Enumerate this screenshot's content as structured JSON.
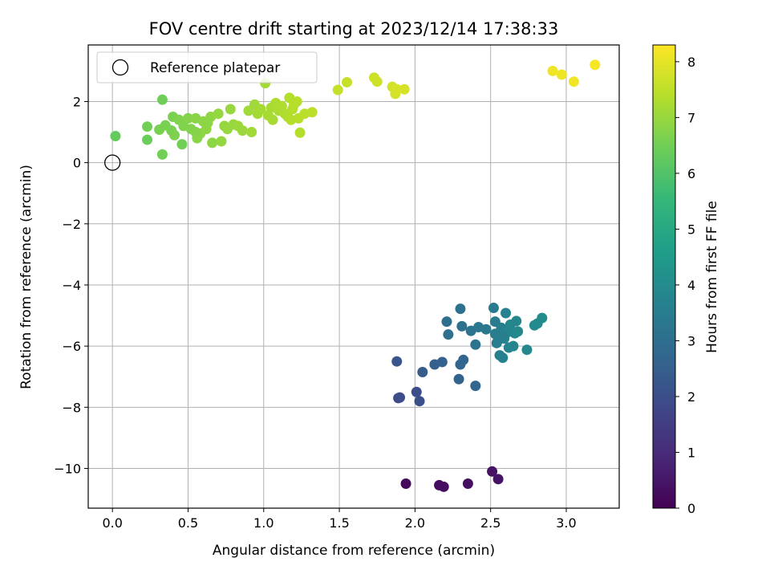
{
  "chart_data": {
    "type": "scatter",
    "title": "FOV centre drift starting at 2023/12/14 17:38:33",
    "xlabel": "Angular distance from reference (arcmin)",
    "ylabel": "Rotation from reference (arcmin)",
    "xlim": [
      -0.16,
      3.35
    ],
    "ylim": [
      -11.3,
      3.85
    ],
    "xticks": [
      0.0,
      0.5,
      1.0,
      1.5,
      2.0,
      2.5,
      3.0
    ],
    "xtick_labels": [
      "0.0",
      "0.5",
      "1.0",
      "1.5",
      "2.0",
      "2.5",
      "3.0"
    ],
    "yticks": [
      -10,
      -8,
      -6,
      -4,
      -2,
      0,
      2
    ],
    "ytick_labels": [
      "−10",
      "−8",
      "−6",
      "−4",
      "−2",
      "0",
      "2"
    ],
    "grid": true,
    "colormap": "viridis",
    "colorbar": {
      "label": "Hours from first FF file",
      "range": [
        0,
        8.3
      ],
      "ticks": [
        0,
        1,
        2,
        3,
        4,
        5,
        6,
        7,
        8
      ],
      "tick_labels": [
        "0",
        "1",
        "2",
        "3",
        "4",
        "5",
        "6",
        "7",
        "8"
      ]
    },
    "legend": {
      "placement": "top-left",
      "entries": [
        "Reference platepar"
      ]
    },
    "reference_point": {
      "x": 0.0,
      "y": 0.0,
      "label": "Reference platepar"
    },
    "points": [
      {
        "x": 1.94,
        "y": -10.5,
        "t": 0.2
      },
      {
        "x": 2.16,
        "y": -10.55,
        "t": 0.25
      },
      {
        "x": 2.19,
        "y": -10.6,
        "t": 0.3
      },
      {
        "x": 2.35,
        "y": -10.5,
        "t": 0.35
      },
      {
        "x": 2.51,
        "y": -10.1,
        "t": 0.4
      },
      {
        "x": 2.55,
        "y": -10.35,
        "t": 0.45
      },
      {
        "x": 1.89,
        "y": -7.7,
        "t": 1.9
      },
      {
        "x": 1.9,
        "y": -7.68,
        "t": 1.95
      },
      {
        "x": 2.01,
        "y": -7.5,
        "t": 2.0
      },
      {
        "x": 2.03,
        "y": -7.8,
        "t": 2.05
      },
      {
        "x": 1.88,
        "y": -6.5,
        "t": 2.2
      },
      {
        "x": 2.05,
        "y": -6.85,
        "t": 2.4
      },
      {
        "x": 2.13,
        "y": -6.6,
        "t": 2.5
      },
      {
        "x": 2.18,
        "y": -6.52,
        "t": 2.55
      },
      {
        "x": 2.29,
        "y": -7.08,
        "t": 2.6
      },
      {
        "x": 2.3,
        "y": -6.6,
        "t": 2.7
      },
      {
        "x": 2.32,
        "y": -6.45,
        "t": 2.75
      },
      {
        "x": 2.4,
        "y": -7.3,
        "t": 2.7
      },
      {
        "x": 2.21,
        "y": -5.2,
        "t": 3.0
      },
      {
        "x": 2.22,
        "y": -5.62,
        "t": 3.05
      },
      {
        "x": 2.3,
        "y": -4.78,
        "t": 3.1
      },
      {
        "x": 2.31,
        "y": -5.35,
        "t": 3.1
      },
      {
        "x": 2.37,
        "y": -5.5,
        "t": 3.2
      },
      {
        "x": 2.4,
        "y": -5.95,
        "t": 3.2
      },
      {
        "x": 2.42,
        "y": -5.38,
        "t": 3.3
      },
      {
        "x": 2.47,
        "y": -5.45,
        "t": 3.35
      },
      {
        "x": 2.52,
        "y": -4.75,
        "t": 3.4
      },
      {
        "x": 2.53,
        "y": -5.2,
        "t": 3.45
      },
      {
        "x": 2.53,
        "y": -5.6,
        "t": 3.5
      },
      {
        "x": 2.54,
        "y": -5.9,
        "t": 3.55
      },
      {
        "x": 2.56,
        "y": -6.3,
        "t": 3.6
      },
      {
        "x": 2.57,
        "y": -5.4,
        "t": 3.6
      },
      {
        "x": 2.58,
        "y": -6.38,
        "t": 3.65
      },
      {
        "x": 2.59,
        "y": -5.75,
        "t": 3.7
      },
      {
        "x": 2.6,
        "y": -4.92,
        "t": 3.7
      },
      {
        "x": 2.61,
        "y": -5.55,
        "t": 3.75
      },
      {
        "x": 2.62,
        "y": -6.05,
        "t": 3.75
      },
      {
        "x": 2.63,
        "y": -5.3,
        "t": 3.8
      },
      {
        "x": 2.65,
        "y": -6.0,
        "t": 3.8
      },
      {
        "x": 2.66,
        "y": -5.58,
        "t": 3.85
      },
      {
        "x": 2.67,
        "y": -5.18,
        "t": 3.85
      },
      {
        "x": 2.68,
        "y": -5.52,
        "t": 3.9
      },
      {
        "x": 2.74,
        "y": -6.12,
        "t": 3.9
      },
      {
        "x": 2.79,
        "y": -5.32,
        "t": 3.95
      },
      {
        "x": 2.81,
        "y": -5.26,
        "t": 3.95
      },
      {
        "x": 2.84,
        "y": -5.08,
        "t": 4.0
      },
      {
        "x": 2.55,
        "y": -5.8,
        "t": 3.55
      },
      {
        "x": 2.58,
        "y": -5.65,
        "t": 3.6
      },
      {
        "x": 0.02,
        "y": 0.87,
        "t": 6.3
      },
      {
        "x": 0.23,
        "y": 1.18,
        "t": 6.5
      },
      {
        "x": 0.23,
        "y": 0.75,
        "t": 6.4
      },
      {
        "x": 0.31,
        "y": 1.08,
        "t": 6.6
      },
      {
        "x": 0.33,
        "y": 0.27,
        "t": 6.5
      },
      {
        "x": 0.33,
        "y": 2.06,
        "t": 6.45
      },
      {
        "x": 0.35,
        "y": 1.22,
        "t": 6.6
      },
      {
        "x": 0.39,
        "y": 1.05,
        "t": 6.6
      },
      {
        "x": 0.4,
        "y": 1.5,
        "t": 6.6
      },
      {
        "x": 0.41,
        "y": 0.9,
        "t": 6.65
      },
      {
        "x": 0.44,
        "y": 1.4,
        "t": 6.7
      },
      {
        "x": 0.46,
        "y": 0.6,
        "t": 6.5
      },
      {
        "x": 0.47,
        "y": 1.2,
        "t": 6.7
      },
      {
        "x": 0.5,
        "y": 1.45,
        "t": 6.75
      },
      {
        "x": 0.52,
        "y": 1.1,
        "t": 6.7
      },
      {
        "x": 0.55,
        "y": 1.45,
        "t": 6.8
      },
      {
        "x": 0.56,
        "y": 0.8,
        "t": 6.8
      },
      {
        "x": 0.58,
        "y": 0.95,
        "t": 6.85
      },
      {
        "x": 0.6,
        "y": 1.35,
        "t": 6.85
      },
      {
        "x": 0.62,
        "y": 1.1,
        "t": 6.9
      },
      {
        "x": 0.65,
        "y": 1.5,
        "t": 6.9
      },
      {
        "x": 0.66,
        "y": 0.65,
        "t": 6.85
      },
      {
        "x": 0.7,
        "y": 1.6,
        "t": 6.95
      },
      {
        "x": 0.72,
        "y": 0.7,
        "t": 6.95
      },
      {
        "x": 0.74,
        "y": 1.2,
        "t": 6.95
      },
      {
        "x": 0.76,
        "y": 1.1,
        "t": 7.0
      },
      {
        "x": 0.78,
        "y": 1.75,
        "t": 7.0
      },
      {
        "x": 0.8,
        "y": 1.25,
        "t": 7.0
      },
      {
        "x": 0.83,
        "y": 1.2,
        "t": 7.05
      },
      {
        "x": 0.86,
        "y": 1.05,
        "t": 7.05
      },
      {
        "x": 0.9,
        "y": 1.7,
        "t": 7.1
      },
      {
        "x": 0.92,
        "y": 1.0,
        "t": 7.1
      },
      {
        "x": 0.94,
        "y": 1.9,
        "t": 7.1
      },
      {
        "x": 0.96,
        "y": 1.6,
        "t": 7.15
      },
      {
        "x": 0.98,
        "y": 1.75,
        "t": 7.15
      },
      {
        "x": 1.01,
        "y": 2.6,
        "t": 7.15
      },
      {
        "x": 1.03,
        "y": 1.55,
        "t": 7.2
      },
      {
        "x": 1.05,
        "y": 1.8,
        "t": 7.2
      },
      {
        "x": 1.06,
        "y": 1.4,
        "t": 7.2
      },
      {
        "x": 1.08,
        "y": 1.95,
        "t": 7.25
      },
      {
        "x": 1.1,
        "y": 1.7,
        "t": 7.25
      },
      {
        "x": 1.12,
        "y": 1.85,
        "t": 7.3
      },
      {
        "x": 1.14,
        "y": 1.6,
        "t": 7.3
      },
      {
        "x": 1.16,
        "y": 1.5,
        "t": 7.3
      },
      {
        "x": 1.17,
        "y": 2.12,
        "t": 7.35
      },
      {
        "x": 1.18,
        "y": 1.4,
        "t": 7.35
      },
      {
        "x": 1.19,
        "y": 1.75,
        "t": 7.35
      },
      {
        "x": 1.2,
        "y": 1.9,
        "t": 7.4
      },
      {
        "x": 1.22,
        "y": 2.0,
        "t": 7.4
      },
      {
        "x": 1.23,
        "y": 1.45,
        "t": 7.4
      },
      {
        "x": 1.24,
        "y": 0.98,
        "t": 7.35
      },
      {
        "x": 1.27,
        "y": 1.6,
        "t": 7.45
      },
      {
        "x": 1.32,
        "y": 1.65,
        "t": 7.45
      },
      {
        "x": 0.55,
        "y": 1.0,
        "t": 6.75
      },
      {
        "x": 0.63,
        "y": 1.3,
        "t": 6.85
      },
      {
        "x": 1.49,
        "y": 2.38,
        "t": 7.6
      },
      {
        "x": 1.55,
        "y": 2.63,
        "t": 7.6
      },
      {
        "x": 1.73,
        "y": 2.78,
        "t": 7.7
      },
      {
        "x": 1.75,
        "y": 2.65,
        "t": 7.7
      },
      {
        "x": 1.85,
        "y": 2.48,
        "t": 7.75
      },
      {
        "x": 1.87,
        "y": 2.25,
        "t": 7.75
      },
      {
        "x": 1.88,
        "y": 2.4,
        "t": 7.8
      },
      {
        "x": 1.93,
        "y": 2.4,
        "t": 7.8
      },
      {
        "x": 2.91,
        "y": 3.0,
        "t": 8.1
      },
      {
        "x": 2.97,
        "y": 2.88,
        "t": 8.1
      },
      {
        "x": 3.05,
        "y": 2.65,
        "t": 8.15
      },
      {
        "x": 3.19,
        "y": 3.2,
        "t": 8.2
      }
    ]
  }
}
